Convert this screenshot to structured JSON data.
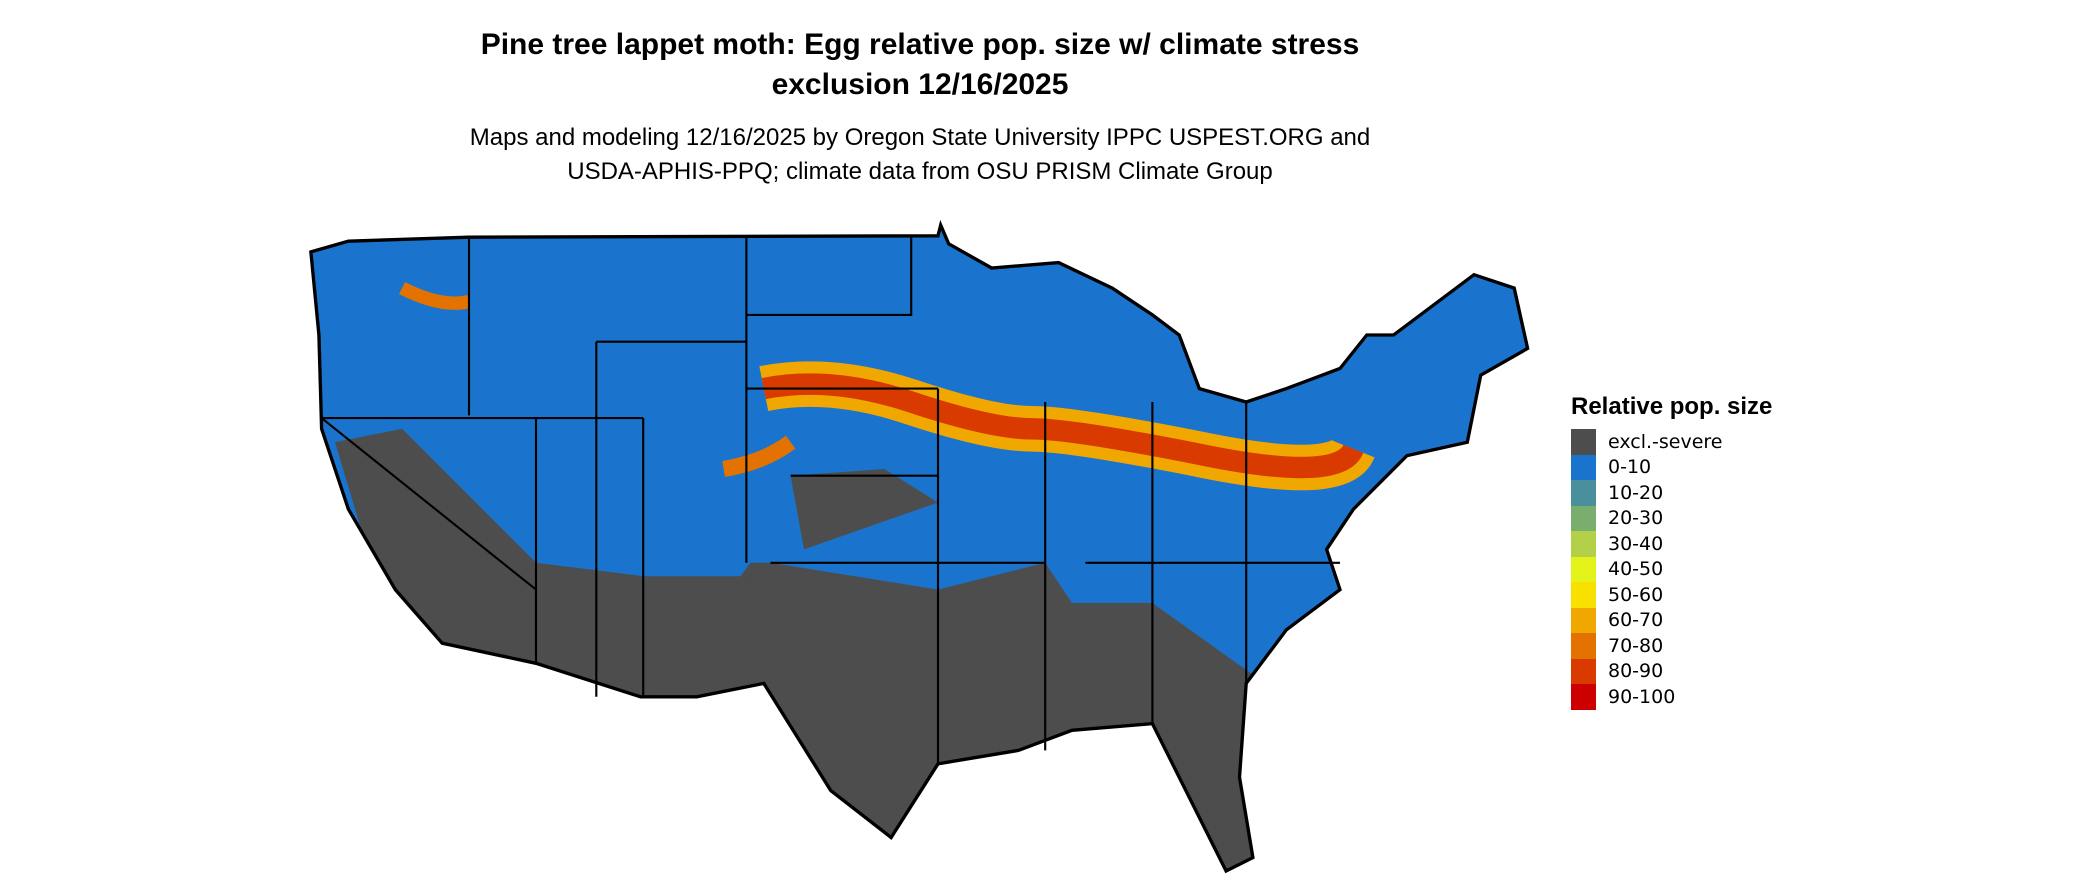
{
  "title_line1": "Pine tree lappet moth: Egg relative pop. size w/ climate stress",
  "title_line2": "exclusion 12/16/2025",
  "subtitle_line1": "Maps and modeling 12/16/2025 by Oregon State University IPPC USPEST.ORG and",
  "subtitle_line2": "USDA-APHIS-PPQ; climate data from OSU PRISM Climate Group",
  "legend": {
    "title": "Relative pop. size",
    "items": [
      {
        "label": "excl.-severe",
        "color": "#4d4d4d"
      },
      {
        "label": "0-10",
        "color": "#1a74cd"
      },
      {
        "label": "10-20",
        "color": "#4a8f9c"
      },
      {
        "label": "20-30",
        "color": "#7aae6e"
      },
      {
        "label": "30-40",
        "color": "#b2d149"
      },
      {
        "label": "40-50",
        "color": "#e3f218"
      },
      {
        "label": "50-60",
        "color": "#f8e000"
      },
      {
        "label": "60-70",
        "color": "#f0a800"
      },
      {
        "label": "70-80",
        "color": "#e47200"
      },
      {
        "label": "80-90",
        "color": "#d83a00"
      },
      {
        "label": "90-100",
        "color": "#cc0000"
      }
    ]
  }
}
